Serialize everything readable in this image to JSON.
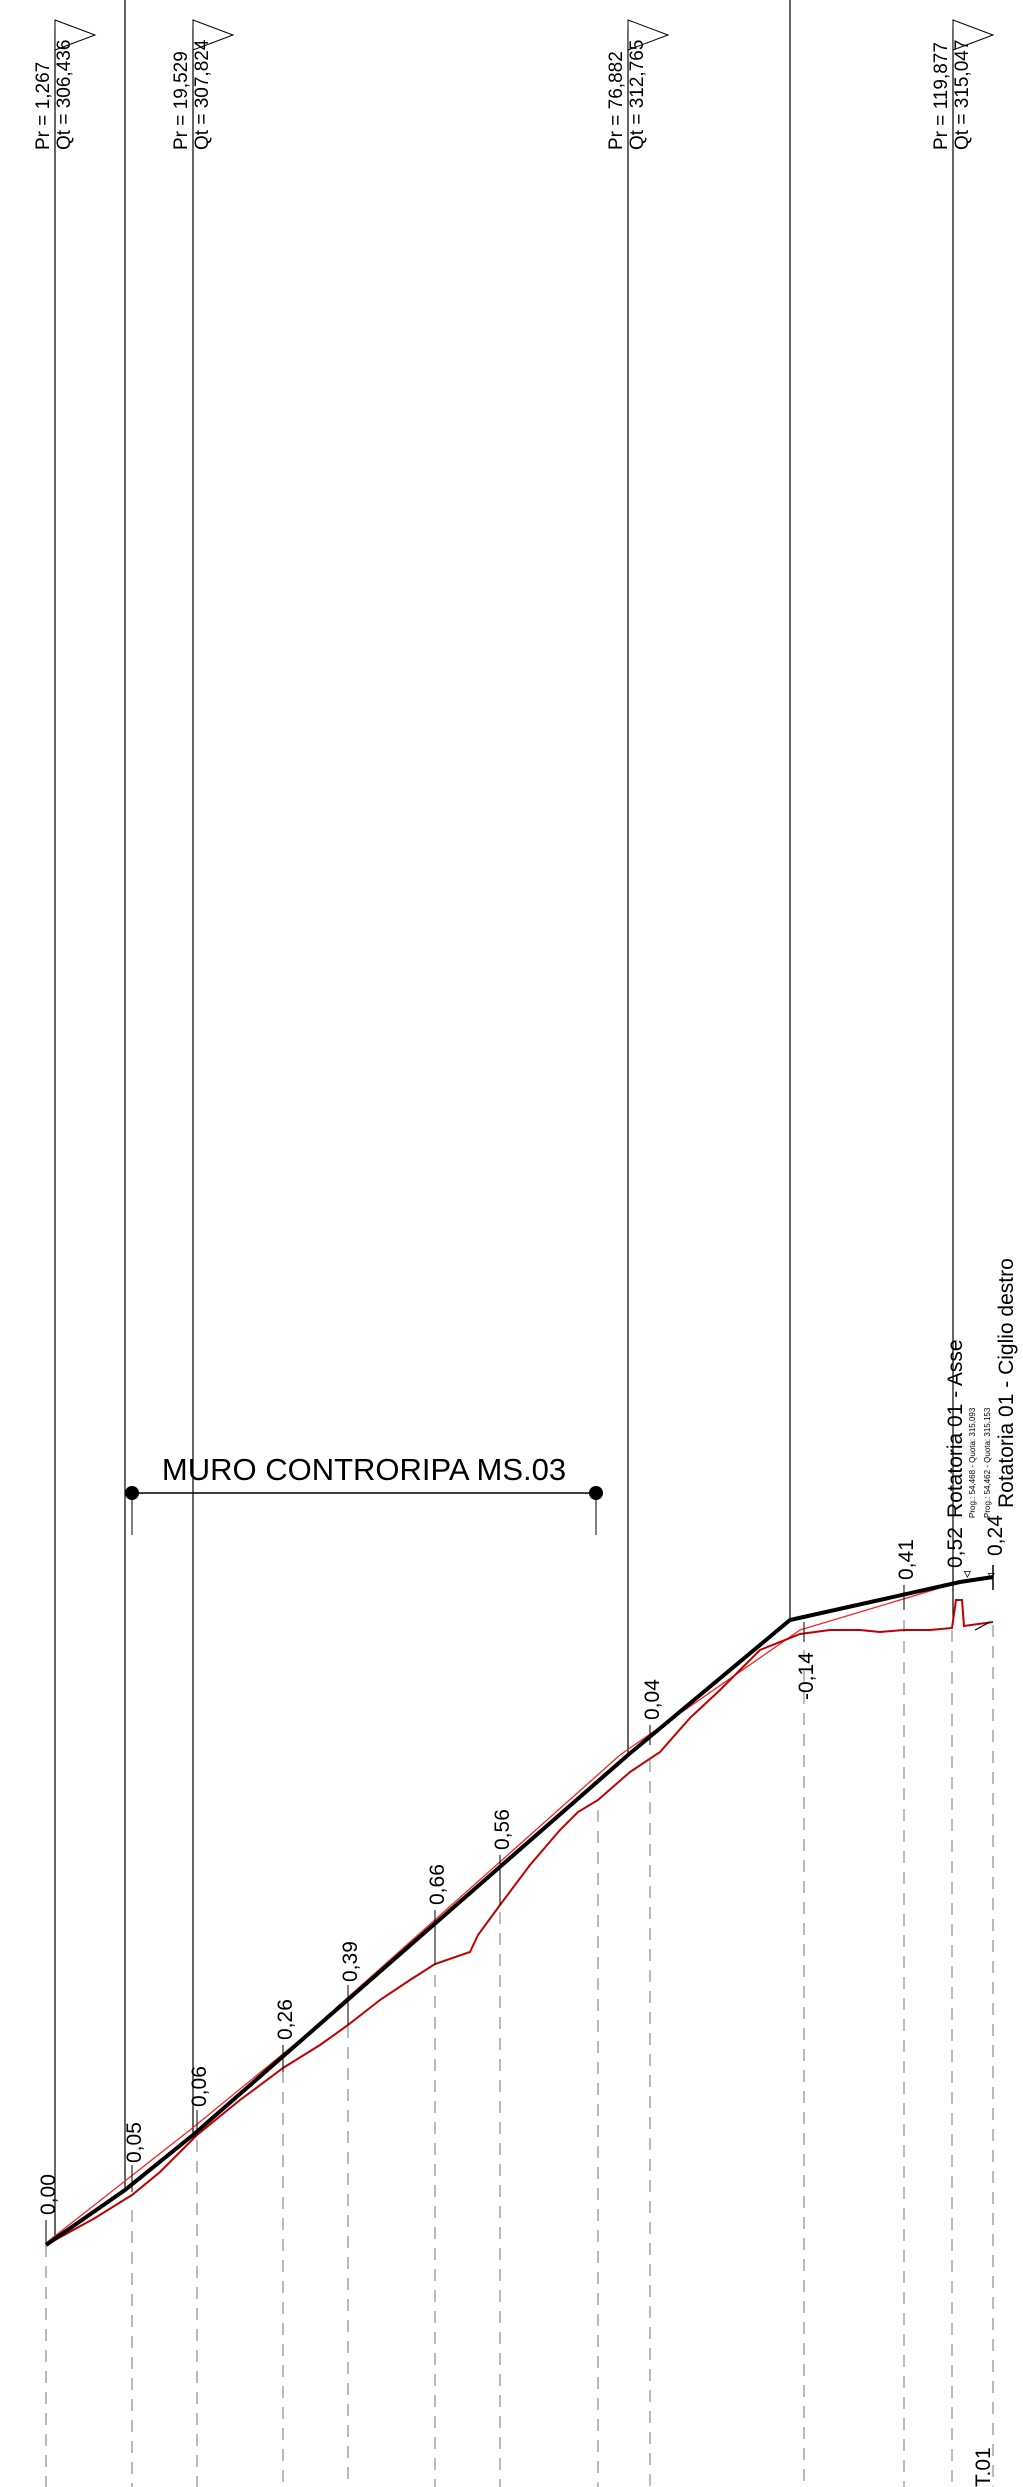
{
  "title": "MURO CONTRORIPA MS.03",
  "sheet_code": "T.01",
  "stations": [
    {
      "pr": "Pr = 1,267",
      "qt": "Qt = 306,436"
    },
    {
      "pr": "Pr = 19,529",
      "qt": "Qt = 307,824"
    },
    {
      "pr": "Pr = 76,882",
      "qt": "Qt = 312,765"
    },
    {
      "pr": "Pr = 119,877",
      "qt": "Qt = 315,047"
    }
  ],
  "differences": [
    "0,00",
    "0,05",
    "0,06",
    "0,26",
    "0,39",
    "0,66",
    "0,56",
    "0,04",
    "-0,14",
    "0,41",
    "0,52",
    "0,24"
  ],
  "points": {
    "asse": {
      "name": "Rotatoria 01 - Asse",
      "info": "Prog.: 54,468 - Quota: 315,093"
    },
    "ciglio": {
      "name": "Rotatoria 01 - Ciglio destro",
      "info": "Prog.: 54,462 - Quota: 315,153"
    }
  },
  "colors": {
    "project": "#000000",
    "terrain": "#c00000",
    "reference": "#ff2020"
  }
}
